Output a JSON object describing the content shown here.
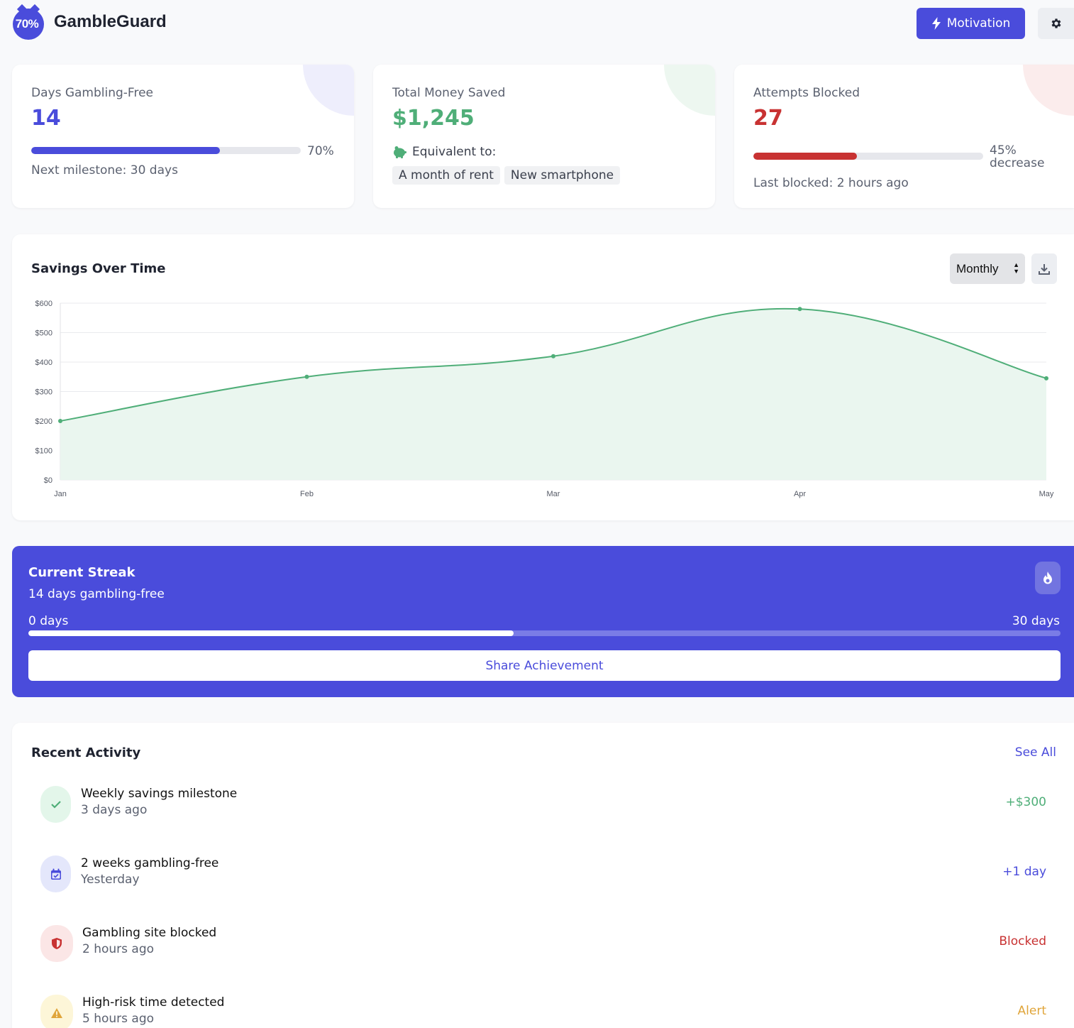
{
  "header": {
    "logo_text": "70%",
    "brand": "GambleGuard",
    "motivation_label": "Motivation",
    "settings_icon": "gear-icon"
  },
  "stats": {
    "days": {
      "label": "Days Gambling-Free",
      "value": "14",
      "progress_label": "70%",
      "progress_fraction": 0.7,
      "footer": "Next milestone: 30 days",
      "color": "#4a4cdb"
    },
    "money": {
      "label": "Total Money Saved",
      "value": "$1,245",
      "equivalent_label": "Equivalent to:",
      "chips": [
        "A month of rent",
        "New smartphone"
      ],
      "icon": "piggy-bank-icon",
      "color": "#4fae78"
    },
    "blocked": {
      "label": "Attempts Blocked",
      "value": "27",
      "progress_label_1": "45%",
      "progress_label_2": "decrease",
      "progress_fraction": 0.45,
      "footer": "Last blocked: 2 hours ago",
      "color": "#c83232"
    }
  },
  "chart_card": {
    "title": "Savings Over Time",
    "period_select": "Monthly",
    "download_icon": "download-icon"
  },
  "chart_data": {
    "type": "area",
    "categories": [
      "Jan",
      "Feb",
      "Mar",
      "Apr",
      "May"
    ],
    "series": [
      {
        "values": [
          200,
          350,
          420,
          580,
          345
        ]
      }
    ],
    "y_ticks": [
      "$0",
      "$100",
      "$200",
      "$300",
      "$400",
      "$500",
      "$600"
    ],
    "ylim": [
      0,
      600
    ],
    "grid": true,
    "legend": "none",
    "line_color": "#4fae78",
    "fill_color": "#eaf6ef"
  },
  "streak": {
    "title": "Current Streak",
    "subtitle": "14 days gambling-free",
    "min_label": "0 days",
    "max_label": "30 days",
    "progress_fraction": 0.47,
    "share_label": "Share Achievement",
    "icon": "fire-icon"
  },
  "activity": {
    "title": "Recent Activity",
    "see_all": "See All",
    "items": [
      {
        "title": "Weekly savings milestone",
        "time": "3 days ago",
        "value": "+$300",
        "value_color": "#4fae78",
        "icon": "check-icon",
        "icon_bg": "#e3f6ea"
      },
      {
        "title": "2 weeks gambling-free",
        "time": "Yesterday",
        "value": "+1 day",
        "value_color": "#4a4cdb",
        "icon": "calendar-icon",
        "icon_bg": "#e4e7fb"
      },
      {
        "title": "Gambling site blocked",
        "time": "2 hours ago",
        "value": "Blocked",
        "value_color": "#c83232",
        "icon": "shield-icon",
        "icon_bg": "#fbe6e6"
      },
      {
        "title": "High-risk time detected",
        "time": "5 hours ago",
        "value": "Alert",
        "value_color": "#e0a53a",
        "icon": "warning-icon",
        "icon_bg": "#fdf6d8"
      }
    ]
  }
}
